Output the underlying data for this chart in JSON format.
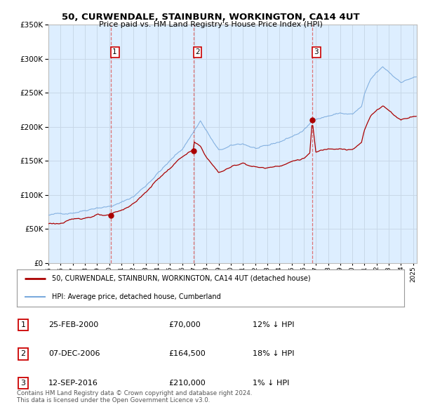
{
  "title": "50, CURWENDALE, STAINBURN, WORKINGTON, CA14 4UT",
  "subtitle": "Price paid vs. HM Land Registry's House Price Index (HPI)",
  "background_color": "#ffffff",
  "plot_bg_color": "#ddeeff",
  "grid_color": "#c8d8e8",
  "hpi_color": "#7aaadd",
  "price_color": "#aa0000",
  "dashed_line_color": "#dd6666",
  "ylim": [
    0,
    350000
  ],
  "yticks": [
    0,
    50000,
    100000,
    150000,
    200000,
    250000,
    300000,
    350000
  ],
  "legend_label_price": "50, CURWENDALE, STAINBURN, WORKINGTON, CA14 4UT (detached house)",
  "legend_label_hpi": "HPI: Average price, detached house, Cumberland",
  "transactions": [
    {
      "label": "1",
      "date": "25-FEB-2000",
      "price": 70000,
      "hpi_pct": "12% ↓ HPI",
      "x": 2000.12
    },
    {
      "label": "2",
      "date": "07-DEC-2006",
      "price": 164500,
      "hpi_pct": "18% ↓ HPI",
      "x": 2006.92
    },
    {
      "label": "3",
      "date": "12-SEP-2016",
      "price": 210000,
      "hpi_pct": "1% ↓ HPI",
      "x": 2016.7
    }
  ],
  "footnote": "Contains HM Land Registry data © Crown copyright and database right 2024.\nThis data is licensed under the Open Government Licence v3.0.",
  "xmin": 1995.0,
  "xmax": 2025.3
}
